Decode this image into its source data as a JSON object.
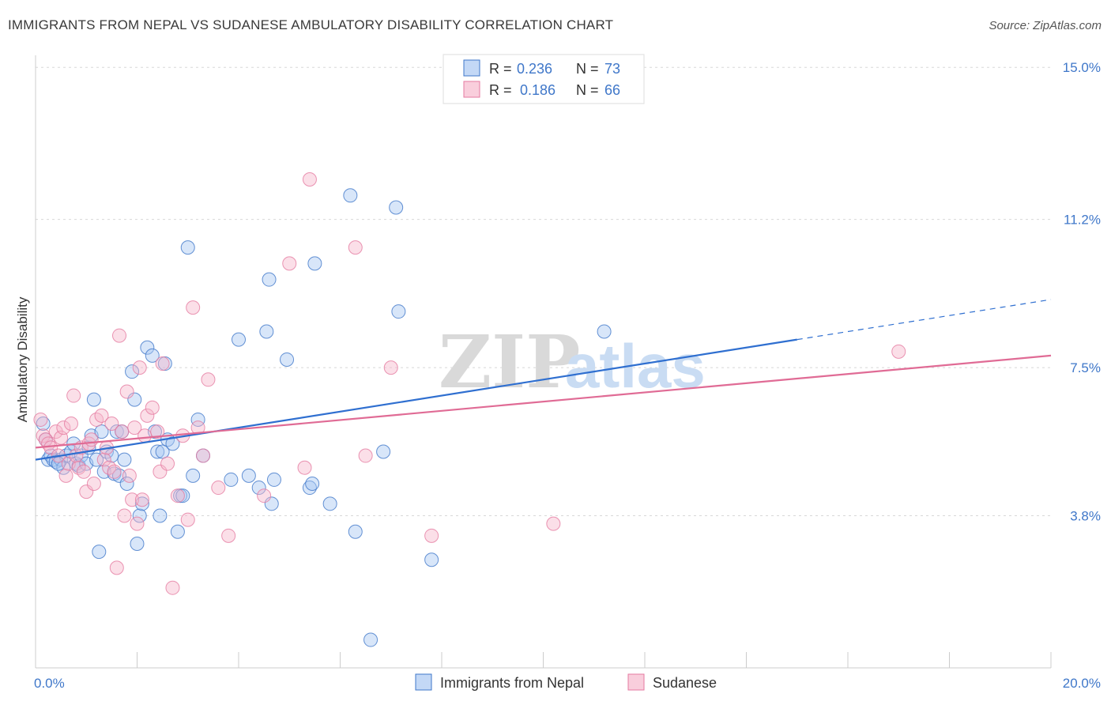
{
  "header": {
    "title": "IMMIGRANTS FROM NEPAL VS SUDANESE AMBULATORY DISABILITY CORRELATION CHART",
    "source": "Source: ZipAtlas.com"
  },
  "watermark": {
    "zip": "ZIP",
    "atlas": "atlas"
  },
  "colors": {
    "blue": "#3f77c9",
    "blue_fill": "#a9c8f2",
    "blue_line": "#2f6fd0",
    "pink": "#e57aa0",
    "pink_fill": "#f6b9cd",
    "pink_line": "#e06b95",
    "grid": "#d8d8d8"
  },
  "legend_box": {
    "row1": {
      "r_label": "R =",
      "r_value": "0.236",
      "n_label": "N =",
      "n_value": "73"
    },
    "row2": {
      "r_label": "R =",
      "r_value": "0.186",
      "n_label": "N =",
      "n_value": "66"
    }
  },
  "bottom_legend": {
    "item1": "Immigrants from Nepal",
    "item2": "Sudanese"
  },
  "chart_data": {
    "type": "scatter",
    "title": "IMMIGRANTS FROM NEPAL VS SUDANESE AMBULATORY DISABILITY CORRELATION CHART",
    "xlabel": "",
    "ylabel": "Ambulatory Disability",
    "xlim": [
      0,
      20
    ],
    "ylim": [
      0,
      15.3
    ],
    "x_tick_labels": [
      "0.0%",
      "20.0%"
    ],
    "y_ticks": [
      3.8,
      7.5,
      11.2,
      15.0
    ],
    "y_tick_labels": [
      "3.8%",
      "7.5%",
      "11.2%",
      "15.0%"
    ],
    "grid": true,
    "legend_position": "top-center",
    "series": [
      {
        "name": "Immigrants from Nepal",
        "color": "#3f77c9",
        "R": 0.236,
        "N": 73,
        "trend": {
          "x0": 0,
          "y0": 5.2,
          "x1": 15.0,
          "y1": 8.2,
          "dash_to_x": 20.0,
          "dash_to_y": 9.2
        },
        "points": [
          [
            0.15,
            6.1
          ],
          [
            0.2,
            5.7
          ],
          [
            0.25,
            5.2
          ],
          [
            0.3,
            5.3
          ],
          [
            0.35,
            5.2
          ],
          [
            0.4,
            5.15
          ],
          [
            0.5,
            5.2
          ],
          [
            0.55,
            5.0
          ],
          [
            0.6,
            5.3
          ],
          [
            0.7,
            5.4
          ],
          [
            0.75,
            5.6
          ],
          [
            0.8,
            5.1
          ],
          [
            0.85,
            5.05
          ],
          [
            0.9,
            5.3
          ],
          [
            1.0,
            5.1
          ],
          [
            1.05,
            5.5
          ],
          [
            1.1,
            5.8
          ],
          [
            1.15,
            6.7
          ],
          [
            1.2,
            5.2
          ],
          [
            1.3,
            5.9
          ],
          [
            1.35,
            4.9
          ],
          [
            1.4,
            5.4
          ],
          [
            1.5,
            5.3
          ],
          [
            1.55,
            4.85
          ],
          [
            1.6,
            5.9
          ],
          [
            1.65,
            4.8
          ],
          [
            1.7,
            5.9
          ],
          [
            1.75,
            5.2
          ],
          [
            1.8,
            4.6
          ],
          [
            1.9,
            7.4
          ],
          [
            1.95,
            6.7
          ],
          [
            2.0,
            3.1
          ],
          [
            2.05,
            3.8
          ],
          [
            2.1,
            4.1
          ],
          [
            2.2,
            8.0
          ],
          [
            2.3,
            7.8
          ],
          [
            2.35,
            5.9
          ],
          [
            2.4,
            5.4
          ],
          [
            2.45,
            3.8
          ],
          [
            2.5,
            5.4
          ],
          [
            2.55,
            7.6
          ],
          [
            2.6,
            5.7
          ],
          [
            2.7,
            5.6
          ],
          [
            2.8,
            3.4
          ],
          [
            2.85,
            4.3
          ],
          [
            2.9,
            4.3
          ],
          [
            3.0,
            10.5
          ],
          [
            3.1,
            4.8
          ],
          [
            3.2,
            6.2
          ],
          [
            3.3,
            5.3
          ],
          [
            3.85,
            4.7
          ],
          [
            4.0,
            8.2
          ],
          [
            4.2,
            4.8
          ],
          [
            4.4,
            4.5
          ],
          [
            4.55,
            8.4
          ],
          [
            4.6,
            9.7
          ],
          [
            4.65,
            4.1
          ],
          [
            4.7,
            4.7
          ],
          [
            4.95,
            7.7
          ],
          [
            5.4,
            4.5
          ],
          [
            5.45,
            4.6
          ],
          [
            5.5,
            10.1
          ],
          [
            5.8,
            4.1
          ],
          [
            6.2,
            11.8
          ],
          [
            6.3,
            3.4
          ],
          [
            6.6,
            0.7
          ],
          [
            6.85,
            5.4
          ],
          [
            7.1,
            11.5
          ],
          [
            7.15,
            8.9
          ],
          [
            7.8,
            2.7
          ],
          [
            11.2,
            8.4
          ],
          [
            1.25,
            2.9
          ],
          [
            0.45,
            5.1
          ]
        ]
      },
      {
        "name": "Sudanese",
        "color": "#e57aa0",
        "R": 0.186,
        "N": 66,
        "trend": {
          "x0": 0,
          "y0": 5.5,
          "x1": 20.0,
          "y1": 7.8
        },
        "points": [
          [
            0.1,
            6.2
          ],
          [
            0.15,
            5.8
          ],
          [
            0.2,
            5.7
          ],
          [
            0.25,
            5.6
          ],
          [
            0.3,
            5.5
          ],
          [
            0.4,
            5.9
          ],
          [
            0.45,
            5.3
          ],
          [
            0.5,
            5.75
          ],
          [
            0.55,
            6.0
          ],
          [
            0.6,
            4.8
          ],
          [
            0.65,
            5.1
          ],
          [
            0.7,
            6.1
          ],
          [
            0.75,
            6.8
          ],
          [
            0.8,
            5.3
          ],
          [
            0.85,
            5.0
          ],
          [
            0.9,
            5.5
          ],
          [
            0.95,
            4.9
          ],
          [
            1.0,
            4.4
          ],
          [
            1.05,
            5.6
          ],
          [
            1.1,
            5.7
          ],
          [
            1.15,
            4.6
          ],
          [
            1.2,
            6.2
          ],
          [
            1.3,
            6.3
          ],
          [
            1.35,
            5.2
          ],
          [
            1.4,
            5.5
          ],
          [
            1.45,
            5.0
          ],
          [
            1.5,
            6.1
          ],
          [
            1.55,
            4.9
          ],
          [
            1.6,
            2.5
          ],
          [
            1.65,
            8.3
          ],
          [
            1.7,
            5.9
          ],
          [
            1.75,
            3.8
          ],
          [
            1.8,
            6.9
          ],
          [
            1.85,
            4.8
          ],
          [
            1.9,
            4.2
          ],
          [
            1.95,
            6.0
          ],
          [
            2.0,
            3.6
          ],
          [
            2.05,
            7.5
          ],
          [
            2.1,
            4.2
          ],
          [
            2.15,
            5.8
          ],
          [
            2.2,
            6.3
          ],
          [
            2.3,
            6.5
          ],
          [
            2.4,
            5.9
          ],
          [
            2.45,
            4.9
          ],
          [
            2.5,
            7.6
          ],
          [
            2.6,
            5.1
          ],
          [
            2.7,
            2.0
          ],
          [
            2.8,
            4.3
          ],
          [
            2.9,
            5.8
          ],
          [
            3.0,
            3.7
          ],
          [
            3.1,
            9.0
          ],
          [
            3.2,
            6.0
          ],
          [
            3.3,
            5.3
          ],
          [
            3.4,
            7.2
          ],
          [
            3.6,
            4.5
          ],
          [
            3.8,
            3.3
          ],
          [
            4.5,
            4.3
          ],
          [
            5.0,
            10.1
          ],
          [
            5.3,
            5.0
          ],
          [
            5.4,
            12.2
          ],
          [
            6.3,
            10.5
          ],
          [
            6.5,
            5.3
          ],
          [
            7.0,
            7.5
          ],
          [
            7.8,
            3.3
          ],
          [
            10.2,
            3.6
          ],
          [
            17.0,
            7.9
          ]
        ]
      }
    ]
  }
}
